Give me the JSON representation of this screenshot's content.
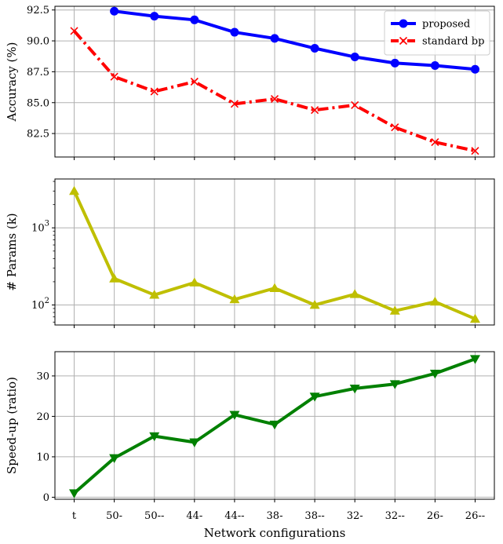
{
  "chart_data": [
    {
      "type": "line",
      "panel": "accuracy",
      "ylabel": "Accuracy (%)",
      "xlabel": "",
      "categories": [
        "t",
        "50-",
        "50--",
        "44-",
        "44--",
        "38-",
        "38--",
        "32-",
        "32--",
        "26-",
        "26--"
      ],
      "ylim": [
        80.6,
        92.8
      ],
      "yticks": [
        "82.5",
        "85.0",
        "87.5",
        "90.0",
        "92.5"
      ],
      "grid": true,
      "legend": "top-right",
      "series": [
        {
          "name": "proposed",
          "color": "#0000ff",
          "marker": "circle",
          "style": "solid",
          "values": [
            null,
            92.4,
            92.0,
            91.7,
            90.7,
            90.2,
            89.4,
            88.7,
            88.2,
            88.0,
            87.7
          ]
        },
        {
          "name": "standard bp",
          "color": "#ff0000",
          "marker": "x",
          "style": "dashdot",
          "values": [
            90.8,
            87.1,
            85.9,
            86.7,
            84.9,
            85.3,
            84.4,
            84.8,
            83.0,
            81.8,
            81.1
          ]
        }
      ]
    },
    {
      "type": "line",
      "panel": "params",
      "ylabel": "# Params (k)",
      "xlabel": "",
      "scale": "log",
      "categories": [
        "t",
        "50-",
        "50--",
        "44-",
        "44--",
        "38-",
        "38--",
        "32-",
        "32--",
        "26-",
        "26--"
      ],
      "ylim": [
        55,
        4300
      ],
      "yticks": [
        {
          "base": "10",
          "exp": "2",
          "value": 100
        },
        {
          "base": "10",
          "exp": "3",
          "value": 1000
        }
      ],
      "grid": true,
      "series": [
        {
          "color": "#bfbf00",
          "marker": "triangle-up",
          "values": [
            3000,
            220,
            135,
            195,
            118,
            165,
            100,
            138,
            84,
            110,
            66
          ]
        }
      ]
    },
    {
      "type": "line",
      "panel": "speedup",
      "ylabel": "Speed-up (ratio)",
      "xlabel": "Network configurations",
      "categories": [
        "t",
        "50-",
        "50--",
        "44-",
        "44--",
        "38-",
        "38--",
        "32-",
        "32--",
        "26-",
        "26--"
      ],
      "ylim": [
        -0.5,
        36
      ],
      "yticks": [
        "0",
        "10",
        "20",
        "30"
      ],
      "grid": true,
      "series": [
        {
          "color": "#008000",
          "marker": "triangle-down",
          "values": [
            1.0,
            9.7,
            15.1,
            13.6,
            20.4,
            18.0,
            24.9,
            26.9,
            28.0,
            30.6,
            34.2
          ]
        }
      ]
    }
  ]
}
